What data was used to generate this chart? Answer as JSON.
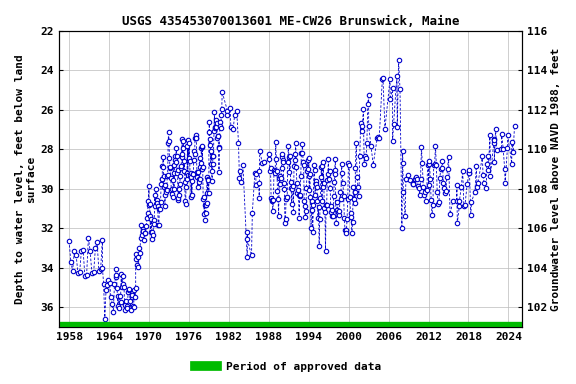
{
  "title": "USGS 435453070013601 ME-CW26 Brunswick, Maine",
  "ylabel_left": "Depth to water level, feet below land\nsurface",
  "ylabel_right": "Groundwater level above NAVD 1988, feet",
  "xlim": [
    1956.5,
    2026
  ],
  "ylim_left_top": 22,
  "ylim_left_bottom": 37,
  "ylim_right_top": 116,
  "ylim_right_bottom": 101,
  "xticks": [
    1958,
    1964,
    1970,
    1976,
    1982,
    1988,
    1994,
    2000,
    2006,
    2012,
    2018,
    2024
  ],
  "yticks_left": [
    22,
    24,
    26,
    28,
    30,
    32,
    34,
    36
  ],
  "yticks_right": [
    116,
    114,
    112,
    110,
    108,
    106,
    104,
    102
  ],
  "grid_color": "#bbbbbb",
  "background_color": "#ffffff",
  "data_color": "#0000cc",
  "approved_color": "#00bb00",
  "legend_label": "Period of approved data",
  "title_fontsize": 9,
  "axis_label_fontsize": 8,
  "tick_fontsize": 8,
  "land_surface_elev": 138.0
}
